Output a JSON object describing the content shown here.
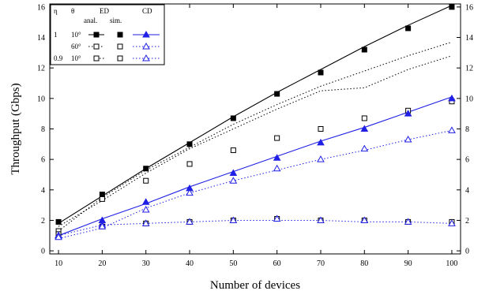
{
  "chart_data": {
    "type": "line",
    "xlabel": "Number of devices",
    "ylabel": "Throughput (Gbps)",
    "xlim": [
      8,
      102
    ],
    "ylim": [
      -0.2,
      16.2
    ],
    "x_ticks": [
      10,
      20,
      30,
      40,
      50,
      60,
      70,
      80,
      90,
      100
    ],
    "y_ticks": [
      0,
      2,
      4,
      6,
      8,
      10,
      12,
      14,
      16
    ],
    "x": [
      10,
      20,
      30,
      40,
      50,
      60,
      70,
      80,
      90,
      100
    ],
    "grid": false,
    "right_axis_labels": true,
    "legend": {
      "position": "top-left",
      "header": {
        "eta": "η",
        "theta": "θ",
        "ed": "ED",
        "cd": "CD",
        "anal": "anal.",
        "sim": "sim."
      },
      "rows": [
        {
          "eta": "1",
          "theta": "10°"
        },
        {
          "eta": "",
          "theta": "60°"
        },
        {
          "eta": "0.9",
          "theta": "10°"
        }
      ]
    },
    "series": [
      {
        "method": "ED",
        "eta": 1,
        "theta": "10°",
        "color": "#000000",
        "line": "solid",
        "marker": "filled-square",
        "anal": [
          1.8,
          3.6,
          5.4,
          7.1,
          8.8,
          10.4,
          11.9,
          13.4,
          14.8,
          16.1
        ],
        "sim": [
          1.9,
          3.7,
          5.4,
          7.0,
          8.7,
          10.3,
          11.7,
          13.2,
          14.6,
          16.0
        ]
      },
      {
        "method": "ED",
        "eta": 1,
        "theta": "60°",
        "color": "#000000",
        "line": "dotted",
        "marker": "open-square",
        "anal": [
          1.3,
          3.5,
          5.3,
          6.8,
          8.3,
          9.6,
          10.8,
          11.8,
          12.8,
          13.7
        ],
        "sim": [
          1.3,
          3.4,
          4.6,
          5.7,
          6.6,
          7.4,
          8.0,
          8.7,
          9.2,
          9.8
        ]
      },
      {
        "method": "ED",
        "eta": 0.9,
        "theta": "10°",
        "color": "#000000",
        "line": "dotted",
        "marker": "open-square",
        "anal": [
          1.6,
          3.3,
          5.1,
          6.7,
          8.0,
          9.3,
          10.5,
          10.7,
          11.9,
          12.8
        ],
        "sim": [
          1.1,
          1.6,
          1.8,
          1.9,
          2.0,
          2.1,
          2.0,
          2.0,
          1.9,
          1.9
        ]
      },
      {
        "method": "CD",
        "eta": 1,
        "theta": "10°",
        "color": "#1f1fe6",
        "line": "solid",
        "marker": "filled-triangle",
        "anal": [
          1.0,
          2.1,
          3.1,
          4.2,
          5.2,
          6.2,
          7.2,
          8.1,
          9.1,
          10.1
        ],
        "sim": [
          1.0,
          2.0,
          3.2,
          4.1,
          5.1,
          6.1,
          7.1,
          8.0,
          9.0,
          10.0
        ]
      },
      {
        "method": "CD",
        "eta": 1,
        "theta": "60°",
        "color": "#1f1fe6",
        "line": "dotted",
        "marker": "open-triangle",
        "anal": [
          1.0,
          1.7,
          1.8,
          1.9,
          2.0,
          2.0,
          2.0,
          1.9,
          1.9,
          1.8
        ],
        "sim": [
          1.0,
          1.7,
          1.8,
          1.9,
          2.0,
          2.1,
          2.0,
          2.0,
          1.9,
          1.8
        ]
      },
      {
        "method": "CD",
        "eta": 0.9,
        "theta": "10°",
        "color": "#1f1fe6",
        "line": "dotted",
        "marker": "open-triangle",
        "anal": [
          0.8,
          1.5,
          2.8,
          3.8,
          4.6,
          5.3,
          6.0,
          6.6,
          7.3,
          7.9
        ],
        "sim": [
          0.9,
          1.6,
          2.7,
          3.8,
          4.6,
          5.4,
          6.0,
          6.7,
          7.3,
          7.9
        ]
      }
    ]
  }
}
